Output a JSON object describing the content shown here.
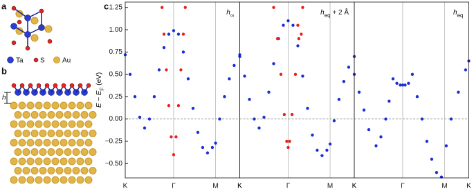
{
  "panel_labels": {
    "a": "a",
    "b": "b",
    "c": "c"
  },
  "structure": {
    "legend": [
      "Ta",
      "S",
      "Au"
    ],
    "height_label": "h"
  },
  "chart_data": [
    {
      "type": "scatter",
      "ylabel": [
        {
          "text": "E − E",
          "style": "italic"
        },
        {
          "text": "F",
          "style": "sub"
        },
        {
          "text": " (eV)",
          "style": "normal"
        }
      ],
      "annotation": [
        {
          "text": "h",
          "style": "italic"
        },
        {
          "text": "∞",
          "style": "sub"
        }
      ],
      "xlim": [
        0,
        2.366
      ],
      "ylim": [
        -0.66,
        1.31
      ],
      "xticks": [
        {
          "value": 0,
          "label": "K"
        },
        {
          "value": 1,
          "label": "Γ"
        },
        {
          "value": 1.866,
          "label": "M"
        },
        {
          "value": 2.366,
          "label": "K"
        }
      ],
      "yticks": [
        {
          "value": -0.5,
          "label": "−0.50"
        },
        {
          "value": -0.25,
          "label": "−0.25"
        },
        {
          "value": 0,
          "label": "0.00"
        },
        {
          "value": 0.25,
          "label": "0.25"
        },
        {
          "value": 0.5,
          "label": "0.50"
        },
        {
          "value": 0.75,
          "label": "0.75"
        },
        {
          "value": 1,
          "label": "1.00"
        },
        {
          "value": 1.25,
          "label": "1.25"
        }
      ],
      "zero_line": true,
      "grid": "x",
      "series": [
        {
          "color": "#1f2fd6",
          "x": [
            0,
            0.1,
            0.2,
            0.3,
            0.4,
            0.5,
            0.6,
            0.7,
            0.8,
            0.9,
            1.0,
            1.1,
            1.2,
            1.3,
            1.4,
            1.5,
            1.6,
            1.7,
            1.8,
            1.866,
            1.95,
            2.05,
            2.15,
            2.25,
            2.366
          ],
          "values": [
            0.72,
            0.5,
            0.25,
            0.02,
            -0.1,
            0.0,
            0.25,
            0.55,
            0.8,
            0.95,
            0.99,
            0.95,
            0.75,
            0.45,
            0.12,
            -0.15,
            -0.32,
            -0.38,
            -0.32,
            -0.27,
            0.0,
            0.25,
            0.45,
            0.6,
            0.72
          ]
        },
        {
          "color": "#e8231f",
          "x": [
            0.76,
            0.8,
            0.85,
            0.9,
            0.95,
            1.0,
            1.05,
            1.1,
            1.15,
            1.2,
            1.24
          ],
          "values": [
            1.25,
            0.95,
            0.55,
            0.15,
            -0.2,
            -0.4,
            -0.2,
            0.15,
            0.55,
            0.95,
            1.25
          ]
        }
      ]
    },
    {
      "type": "scatter",
      "annotation": [
        {
          "text": "h",
          "style": "italic"
        },
        {
          "text": "eq",
          "style": "sub"
        },
        {
          "text": " + 2 Å",
          "style": "normal"
        }
      ],
      "xlim": [
        0,
        2.366
      ],
      "ylim": [
        -0.66,
        1.31
      ],
      "xticks": [
        {
          "value": 0,
          "label": "K"
        },
        {
          "value": 1,
          "label": "Γ"
        },
        {
          "value": 1.866,
          "label": "M"
        },
        {
          "value": 2.366,
          "label": "K"
        }
      ],
      "zero_line": true,
      "grid": "x",
      "series": [
        {
          "color": "#1f2fd6",
          "x": [
            0,
            0.1,
            0.2,
            0.3,
            0.4,
            0.5,
            0.6,
            0.7,
            0.8,
            0.9,
            1.0,
            1.1,
            1.2,
            1.3,
            1.4,
            1.5,
            1.6,
            1.7,
            1.8,
            1.866,
            1.95,
            2.05,
            2.15,
            2.25,
            2.366
          ],
          "values": [
            0.7,
            0.48,
            0.22,
            0.0,
            -0.1,
            0.02,
            0.3,
            0.62,
            0.9,
            1.05,
            1.1,
            1.05,
            0.82,
            0.48,
            0.12,
            -0.18,
            -0.35,
            -0.41,
            -0.35,
            -0.28,
            -0.02,
            0.22,
            0.42,
            0.58,
            0.7
          ]
        },
        {
          "color": "#e8231f",
          "x": [
            0.7,
            0.78,
            0.85,
            0.92,
            0.97,
            1.0,
            1.03,
            1.08,
            1.15,
            1.2,
            1.22,
            1.27,
            1.3
          ],
          "values": [
            1.25,
            0.9,
            0.5,
            0.05,
            -0.25,
            -0.32,
            -0.25,
            0.05,
            0.5,
            1.05,
            0.9,
            0.95,
            1.25
          ]
        }
      ]
    },
    {
      "type": "scatter",
      "annotation": [
        {
          "text": "h",
          "style": "italic"
        },
        {
          "text": "eq",
          "style": "sub"
        }
      ],
      "xlim": [
        0,
        2.366
      ],
      "ylim": [
        -0.66,
        1.31
      ],
      "xticks": [
        {
          "value": 0,
          "label": "K"
        },
        {
          "value": 1,
          "label": "Γ"
        },
        {
          "value": 1.866,
          "label": "M"
        },
        {
          "value": 2.366,
          "label": "K"
        }
      ],
      "zero_line": true,
      "grid": "x",
      "series": [
        {
          "color": "#1f2fd6",
          "x": [
            0,
            0.1,
            0.2,
            0.3,
            0.45,
            0.55,
            0.65,
            0.72,
            0.8,
            0.88,
            0.95,
            1.0,
            1.05,
            1.12,
            1.2,
            1.3,
            1.4,
            1.5,
            1.6,
            1.7,
            1.8,
            1.9,
            2.0,
            2.15,
            2.3,
            2.366
          ],
          "values": [
            0.5,
            0.3,
            0.1,
            -0.12,
            -0.3,
            -0.2,
            0.0,
            0.2,
            0.45,
            0.4,
            0.38,
            0.38,
            0.38,
            0.4,
            0.5,
            0.25,
            0.0,
            -0.25,
            -0.45,
            -0.6,
            -0.65,
            -0.3,
            0.0,
            0.3,
            0.55,
            0.65
          ]
        }
      ]
    }
  ]
}
